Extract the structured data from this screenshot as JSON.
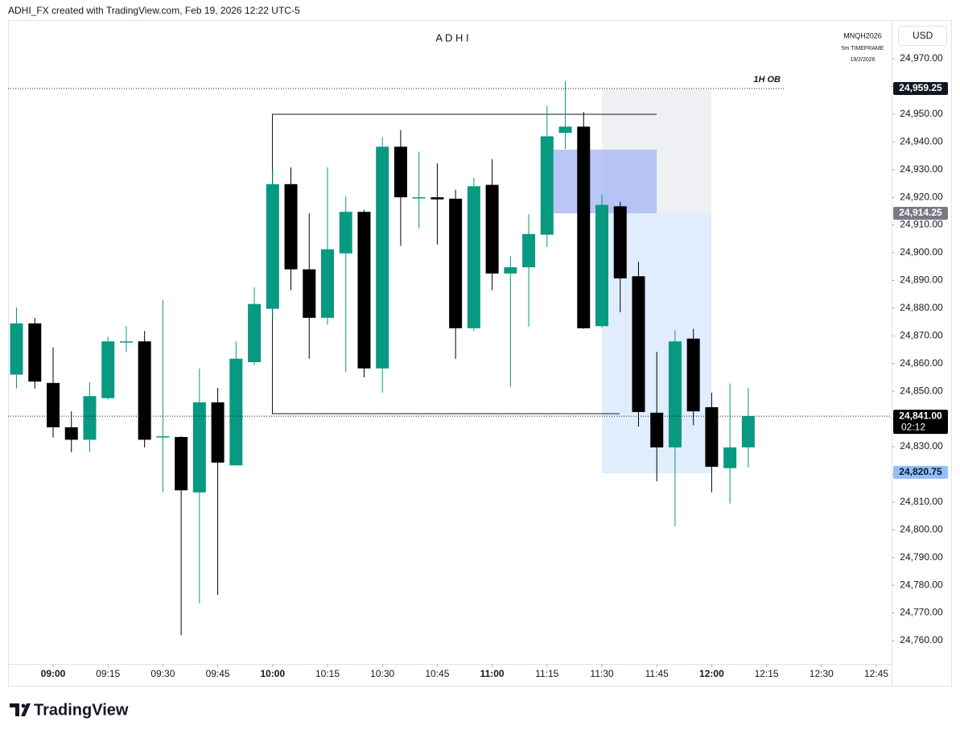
{
  "header": {
    "credit": "ADHI_FX created with TradingView.com, Feb 19, 2026 12:22 UTC-5",
    "currency": "USD"
  },
  "legend": {
    "symbol": "MNQH2026",
    "timeframe": "5m TIMEFRAME",
    "date": "19/2/2026"
  },
  "footer": {
    "brand": "TradingView"
  },
  "chart_data": {
    "type": "candlestick",
    "title": "A D H I",
    "up_color": "#089981",
    "down_color": "#000000",
    "x": [
      "08:50",
      "08:55",
      "09:00",
      "09:05",
      "09:10",
      "09:15",
      "09:20",
      "09:25",
      "09:30",
      "09:35",
      "09:40",
      "09:45",
      "09:50",
      "09:55",
      "10:00",
      "10:05",
      "10:10",
      "10:15",
      "10:20",
      "10:25",
      "10:30",
      "10:35",
      "10:40",
      "10:45",
      "10:50",
      "10:55",
      "11:00",
      "11:05",
      "11:10",
      "11:15",
      "11:20",
      "11:25",
      "11:30",
      "11:35",
      "11:40",
      "11:45",
      "11:50",
      "11:55",
      "12:00",
      "12:05",
      "12:10"
    ],
    "open": [
      24856,
      24874.5,
      24853,
      24837,
      24832.5,
      24847.5,
      24867.75,
      24868,
      24833.5,
      24833.5,
      24813.5,
      24846,
      24823.25,
      24860.5,
      24879.75,
      24924.75,
      24894,
      24876.5,
      24899.75,
      24914.75,
      24858.25,
      24938.25,
      24920,
      24920,
      24919.5,
      24872.75,
      24924.5,
      24892.5,
      24894.75,
      24906.5,
      24943.25,
      24945.5,
      24873.5,
      24916.75,
      24891.5,
      24842.25,
      24829.75,
      24869,
      24844.25,
      24822.25,
      24829.75
    ],
    "high": [
      24880.25,
      24876.5,
      24865.75,
      24842.75,
      24853.25,
      24869.75,
      24873.5,
      24871.75,
      24883,
      24833.75,
      24858.25,
      24851.25,
      24868,
      24887.5,
      24930,
      24930.75,
      24914.25,
      24930.75,
      24920.25,
      24915.5,
      24941.75,
      24944.25,
      24936.5,
      24932.25,
      24922.75,
      24927,
      24933.75,
      24898.75,
      24914,
      24953,
      24962,
      24950.75,
      24921,
      24918.25,
      24896.75,
      24864.25,
      24872,
      24872.5,
      24849.5,
      24852.75,
      24851.25
    ],
    "low": [
      24851,
      24851,
      24833.25,
      24828,
      24828,
      24847,
      24864.25,
      24829.75,
      24813.5,
      24762,
      24773.5,
      24776.5,
      24823.25,
      24859.5,
      24876.5,
      24886.5,
      24861.75,
      24874,
      24857,
      24855,
      24849.5,
      24902.5,
      24908.75,
      24903,
      24861.75,
      24871.75,
      24886.5,
      24851.5,
      24873.25,
      24902,
      24937.5,
      24872.5,
      24873,
      24878.5,
      24837.25,
      24817.5,
      24801.25,
      24837.75,
      24813.5,
      24809.5,
      24822.5
    ],
    "close": [
      24874.5,
      24853.5,
      24837,
      24832.5,
      24848.25,
      24868,
      24868,
      24832.5,
      24833.75,
      24814.25,
      24846,
      24824.25,
      24861.75,
      24881.5,
      24924.75,
      24894,
      24876.5,
      24901.25,
      24914.75,
      24858.25,
      24938.25,
      24920,
      24920,
      24919.25,
      24872.75,
      24924,
      24892.5,
      24894.75,
      24906.75,
      24942,
      24945.5,
      24872.75,
      24917.25,
      24890.75,
      24842.5,
      24829.75,
      24868,
      24842.75,
      24822.75,
      24829.75,
      24841
    ],
    "ylim": [
      24755,
      24985
    ],
    "yticks": [
      {
        "value": 24760,
        "label": "24,760.00"
      },
      {
        "value": 24770,
        "label": "24,770.00"
      },
      {
        "value": 24780,
        "label": "24,780.00"
      },
      {
        "value": 24790,
        "label": "24,790.00"
      },
      {
        "value": 24800,
        "label": "24,800.00"
      },
      {
        "value": 24810,
        "label": "24,810.00"
      },
      {
        "value": 24820,
        "label": "24,820.00"
      },
      {
        "value": 24830,
        "label": "24,830.00"
      },
      {
        "value": 24840,
        "label": "24,840.00"
      },
      {
        "value": 24850,
        "label": "24,850.00"
      },
      {
        "value": 24860,
        "label": "24,860.00"
      },
      {
        "value": 24870,
        "label": "24,870.00"
      },
      {
        "value": 24880,
        "label": "24,880.00"
      },
      {
        "value": 24890,
        "label": "24,890.00"
      },
      {
        "value": 24900,
        "label": "24,900.00"
      },
      {
        "value": 24910,
        "label": "24,910.00"
      },
      {
        "value": 24920,
        "label": "24,920.00"
      },
      {
        "value": 24930,
        "label": "24,930.00"
      },
      {
        "value": 24940,
        "label": "24,940.00"
      },
      {
        "value": 24950,
        "label": "24,950.00"
      },
      {
        "value": 24960,
        "label": "24,960.00"
      },
      {
        "value": 24970,
        "label": "24,970.00"
      }
    ],
    "xticks": [
      "09:00",
      "09:15",
      "09:30",
      "09:45",
      "10:00",
      "10:15",
      "10:30",
      "10:45",
      "11:00",
      "11:15",
      "11:30",
      "11:45",
      "12:00",
      "12:15",
      "12:30",
      "12:45"
    ],
    "price_labels": [
      {
        "value": 24959.25,
        "label": "24,959.25",
        "color": "#131722",
        "text_color": "#ffffff",
        "line": "dotted",
        "annotation": "1H OB"
      },
      {
        "value": 24914.25,
        "label": "24,914.25",
        "color": "#787b86",
        "text_color": "#ffffff"
      },
      {
        "value": 24841,
        "label": "24,841.00",
        "color": "#000000",
        "text_color": "#ffffff",
        "line": "dotted",
        "countdown": "02:12"
      },
      {
        "value": 24820.75,
        "label": "24,820.75",
        "color": "#90bff9",
        "text_color": "#131722"
      }
    ]
  }
}
